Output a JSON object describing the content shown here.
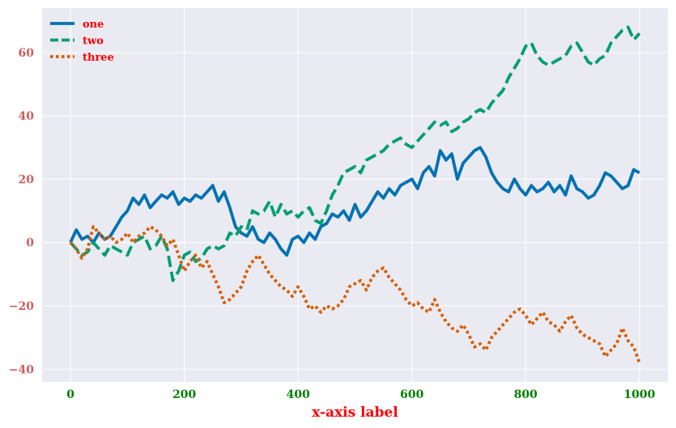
{
  "chart_data": {
    "type": "line",
    "title": "",
    "xlabel": "x-axis label",
    "ylabel": "",
    "xlim": [
      -50,
      1050
    ],
    "ylim": [
      -44,
      74
    ],
    "xticks": [
      0,
      200,
      400,
      600,
      800,
      1000
    ],
    "yticks": [
      -40,
      -20,
      0,
      20,
      40,
      60
    ],
    "xtick_labels": [
      "0",
      "200",
      "400",
      "600",
      "800",
      "1000"
    ],
    "ytick_labels": [
      "−40",
      "−20",
      "0",
      "20",
      "40",
      "60"
    ],
    "grid": true,
    "legend_position": "top-left",
    "colors": {
      "background": "#EAEAF2",
      "grid": "#FFFFFF",
      "xtick": "#008000",
      "ytick": "#CD5C5C",
      "xlabel": "#FF0000",
      "legend_text": "#FF0000"
    },
    "series": [
      {
        "name": "one",
        "color": "#0072B2",
        "style": "solid",
        "x": [
          0,
          10,
          20,
          30,
          40,
          50,
          60,
          70,
          80,
          90,
          100,
          110,
          120,
          130,
          140,
          150,
          160,
          170,
          180,
          190,
          200,
          210,
          220,
          230,
          240,
          250,
          260,
          270,
          280,
          290,
          300,
          310,
          320,
          330,
          340,
          350,
          360,
          370,
          380,
          390,
          400,
          410,
          420,
          430,
          440,
          450,
          460,
          470,
          480,
          490,
          500,
          510,
          520,
          530,
          540,
          550,
          560,
          570,
          580,
          590,
          600,
          610,
          620,
          630,
          640,
          650,
          660,
          670,
          680,
          690,
          700,
          710,
          720,
          730,
          740,
          750,
          760,
          770,
          780,
          790,
          800,
          810,
          820,
          830,
          840,
          850,
          860,
          870,
          880,
          890,
          900,
          910,
          920,
          930,
          940,
          950,
          960,
          970,
          980,
          990,
          1000
        ],
        "y": [
          0,
          4,
          1,
          2,
          0,
          3,
          1,
          2,
          5,
          8,
          10,
          14,
          12,
          15,
          11,
          13,
          15,
          14,
          16,
          12,
          14,
          13,
          15,
          14,
          16,
          18,
          13,
          16,
          11,
          5,
          3,
          2,
          5,
          1,
          0,
          3,
          1,
          -2,
          -4,
          1,
          2,
          0,
          3,
          1,
          5,
          6,
          9,
          8,
          10,
          7,
          12,
          8,
          10,
          13,
          16,
          14,
          17,
          15,
          18,
          19,
          20,
          17,
          22,
          24,
          21,
          29,
          26,
          28,
          20,
          25,
          27,
          29,
          30,
          27,
          22,
          19,
          17,
          16,
          20,
          17,
          15,
          18,
          16,
          17,
          19,
          16,
          18,
          15,
          21,
          17,
          16,
          14,
          15,
          18,
          22,
          21,
          19,
          17,
          18,
          23,
          22
        ]
      },
      {
        "name": "two",
        "color": "#009E73",
        "style": "dashed",
        "x": [
          0,
          10,
          20,
          30,
          40,
          50,
          60,
          70,
          80,
          90,
          100,
          110,
          120,
          130,
          140,
          150,
          160,
          170,
          180,
          190,
          200,
          210,
          220,
          230,
          240,
          250,
          260,
          270,
          280,
          290,
          300,
          310,
          320,
          330,
          340,
          350,
          360,
          370,
          380,
          390,
          400,
          410,
          420,
          430,
          440,
          450,
          460,
          470,
          480,
          490,
          500,
          510,
          520,
          530,
          540,
          550,
          560,
          570,
          580,
          590,
          600,
          610,
          620,
          630,
          640,
          650,
          660,
          670,
          680,
          690,
          700,
          710,
          720,
          730,
          740,
          750,
          760,
          770,
          780,
          790,
          800,
          810,
          820,
          830,
          840,
          850,
          860,
          870,
          880,
          890,
          900,
          910,
          920,
          930,
          940,
          950,
          960,
          970,
          980,
          990,
          1000
        ],
        "y": [
          0,
          -2,
          -4,
          -3,
          0,
          -2,
          -4,
          -1,
          -2,
          -3,
          -4,
          0,
          1,
          2,
          -2,
          -1,
          2,
          -2,
          -12,
          -9,
          -4,
          -3,
          -6,
          -5,
          -2,
          -1,
          -2,
          -1,
          3,
          2,
          5,
          4,
          10,
          9,
          10,
          13,
          8,
          12,
          9,
          10,
          8,
          10,
          11,
          7,
          6,
          10,
          15,
          18,
          22,
          23,
          24,
          22,
          26,
          27,
          28,
          29,
          31,
          32,
          33,
          31,
          30,
          32,
          34,
          36,
          38,
          37,
          38,
          35,
          36,
          38,
          39,
          41,
          42,
          41,
          44,
          46,
          48,
          52,
          55,
          58,
          62,
          63,
          59,
          57,
          56,
          57,
          58,
          59,
          62,
          63,
          60,
          57,
          56,
          58,
          59,
          63,
          65,
          67,
          68,
          64,
          66
        ]
      },
      {
        "name": "three",
        "color": "#D55E00",
        "style": "dotted",
        "x": [
          0,
          10,
          20,
          30,
          40,
          50,
          60,
          70,
          80,
          90,
          100,
          110,
          120,
          130,
          140,
          150,
          160,
          170,
          180,
          190,
          200,
          210,
          220,
          230,
          240,
          250,
          260,
          270,
          280,
          290,
          300,
          310,
          320,
          330,
          340,
          350,
          360,
          370,
          380,
          390,
          400,
          410,
          420,
          430,
          440,
          450,
          460,
          470,
          480,
          490,
          500,
          510,
          520,
          530,
          540,
          550,
          560,
          570,
          580,
          590,
          600,
          610,
          620,
          630,
          640,
          650,
          660,
          670,
          680,
          690,
          700,
          710,
          720,
          730,
          740,
          750,
          760,
          770,
          780,
          790,
          800,
          810,
          820,
          830,
          840,
          850,
          860,
          870,
          880,
          890,
          900,
          910,
          920,
          930,
          940,
          950,
          960,
          970,
          980,
          990,
          1000
        ],
        "y": [
          0,
          -2,
          -5,
          -2,
          5,
          3,
          1,
          2,
          0,
          1,
          3,
          0,
          2,
          3,
          5,
          4,
          2,
          -1,
          1,
          -4,
          -9,
          -6,
          -4,
          -8,
          -6,
          -10,
          -14,
          -19,
          -18,
          -16,
          -14,
          -9,
          -6,
          -4,
          -7,
          -10,
          -12,
          -14,
          -15,
          -17,
          -14,
          -17,
          -21,
          -20,
          -22,
          -20,
          -21,
          -20,
          -18,
          -14,
          -13,
          -12,
          -15,
          -11,
          -9,
          -8,
          -11,
          -13,
          -15,
          -18,
          -20,
          -19,
          -21,
          -22,
          -18,
          -22,
          -25,
          -27,
          -28,
          -26,
          -29,
          -33,
          -32,
          -34,
          -30,
          -28,
          -26,
          -24,
          -22,
          -21,
          -23,
          -26,
          -24,
          -22,
          -25,
          -26,
          -28,
          -25,
          -23,
          -27,
          -29,
          -30,
          -31,
          -32,
          -36,
          -34,
          -32,
          -27,
          -31,
          -33,
          -38
        ]
      }
    ]
  }
}
